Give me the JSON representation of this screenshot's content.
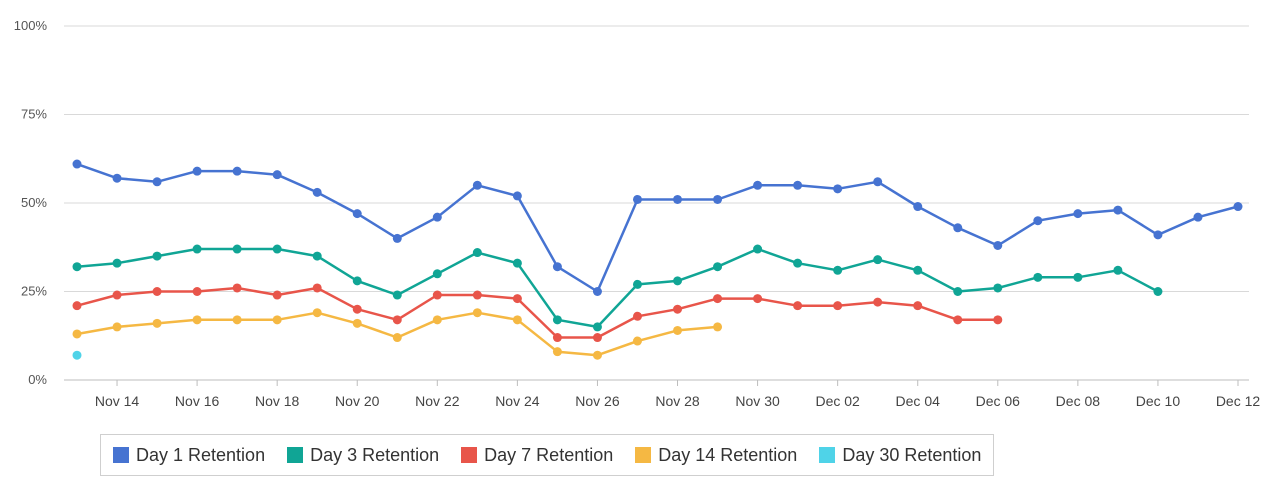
{
  "chart_data": {
    "type": "line",
    "y_axis": {
      "min": 0,
      "max": 100,
      "unit": "%",
      "ticks": [
        0,
        25,
        50,
        75,
        100
      ],
      "tick_labels": [
        "0%",
        "25%",
        "50%",
        "75%",
        "100%"
      ]
    },
    "x_axis": {
      "dates": [
        "Nov 13",
        "Nov 14",
        "Nov 15",
        "Nov 16",
        "Nov 17",
        "Nov 18",
        "Nov 19",
        "Nov 20",
        "Nov 21",
        "Nov 22",
        "Nov 23",
        "Nov 24",
        "Nov 25",
        "Nov 26",
        "Nov 27",
        "Nov 28",
        "Nov 29",
        "Nov 30",
        "Dec 01",
        "Dec 02",
        "Dec 03",
        "Dec 04",
        "Dec 05",
        "Dec 06",
        "Dec 07",
        "Dec 08",
        "Dec 09",
        "Dec 10",
        "Dec 11",
        "Dec 12"
      ],
      "tick_labels": [
        "Nov 14",
        "Nov 16",
        "Nov 18",
        "Nov 20",
        "Nov 22",
        "Nov 24",
        "Nov 26",
        "Nov 28",
        "Nov 30",
        "Dec 02",
        "Dec 04",
        "Dec 06",
        "Dec 08",
        "Dec 10",
        "Dec 12"
      ]
    },
    "grid": true,
    "legend_position": "bottom-left",
    "series": [
      {
        "name": "Day 1 Retention",
        "color": "#4673d1",
        "values": [
          61,
          57,
          56,
          59,
          59,
          58,
          53,
          47,
          40,
          46,
          55,
          52,
          32,
          25,
          51,
          51,
          51,
          55,
          55,
          54,
          56,
          49,
          43,
          38,
          45,
          47,
          48,
          41,
          46,
          49
        ]
      },
      {
        "name": "Day 3 Retention",
        "color": "#10a595",
        "values": [
          32,
          33,
          35,
          37,
          37,
          37,
          35,
          28,
          24,
          30,
          36,
          33,
          17,
          15,
          27,
          28,
          32,
          37,
          33,
          31,
          34,
          31,
          25,
          26,
          29,
          29,
          31,
          25
        ]
      },
      {
        "name": "Day 7 Retention",
        "color": "#e8554a",
        "values": [
          21,
          24,
          25,
          25,
          26,
          24,
          26,
          20,
          17,
          24,
          24,
          23,
          12,
          12,
          18,
          20,
          23,
          23,
          21,
          21,
          22,
          21,
          17,
          17
        ]
      },
      {
        "name": "Day 14 Retention",
        "color": "#f5b843",
        "values": [
          13,
          15,
          16,
          17,
          17,
          17,
          19,
          16,
          12,
          17,
          19,
          17,
          8,
          7,
          11,
          14,
          15
        ]
      },
      {
        "name": "Day 30 Retention",
        "color": "#4fd3e8",
        "values": [
          7
        ]
      }
    ]
  }
}
